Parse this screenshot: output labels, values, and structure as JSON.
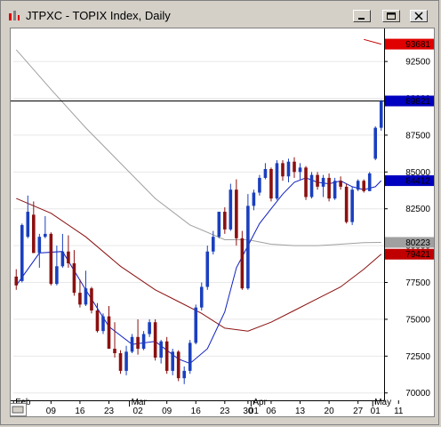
{
  "window": {
    "title": "JTPXC - TOPIX Index, Daily"
  },
  "chart_data": {
    "type": "candlestick",
    "title": "JTPXC - TOPIX Index, Daily",
    "ylim": [
      6950,
      9450
    ],
    "y_ticks": [
      "92500",
      "90000",
      "87500",
      "85000",
      "82500",
      "80000",
      "77500",
      "75000",
      "72500",
      "70000"
    ],
    "x_ticks": [
      {
        "label": "02",
        "idx": 1
      },
      {
        "label": "09",
        "idx": 6
      },
      {
        "label": "16",
        "idx": 11
      },
      {
        "label": "23",
        "idx": 16
      },
      {
        "label": "02",
        "idx": 21
      },
      {
        "label": "09",
        "idx": 26
      },
      {
        "label": "16",
        "idx": 31
      },
      {
        "label": "23",
        "idx": 36
      },
      {
        "label": "30",
        "idx": 40
      },
      {
        "label": "01",
        "idx": 41
      },
      {
        "label": "06",
        "idx": 44
      },
      {
        "label": "13",
        "idx": 49
      },
      {
        "label": "20",
        "idx": 54
      },
      {
        "label": "27",
        "idx": 59
      },
      {
        "label": "01",
        "idx": 62
      },
      {
        "label": "11",
        "idx": 66
      }
    ],
    "months": [
      {
        "label": "Feb",
        "idx": 0
      },
      {
        "label": "Mar",
        "idx": 20
      },
      {
        "label": "Apr",
        "idx": 41
      },
      {
        "label": "May",
        "idx": 62
      }
    ],
    "last_price": 8982,
    "price_tags": [
      {
        "label": "93681",
        "value": 9368,
        "color": "#e00000"
      },
      {
        "label": "89821",
        "value": 8982,
        "color": "#0000c0"
      },
      {
        "label": "84412",
        "value": 8441,
        "color": "#0000c0"
      },
      {
        "label": "80223",
        "value": 8022,
        "color": "#a0a0a0"
      },
      {
        "label": "79421",
        "value": 7942,
        "color": "#c00000"
      }
    ],
    "candles": [
      [
        7790,
        7840,
        7700,
        7730
      ],
      [
        7760,
        8150,
        7750,
        8140
      ],
      [
        8060,
        8340,
        8050,
        8230
      ],
      [
        8210,
        8300,
        7950,
        7950
      ],
      [
        7950,
        8080,
        7850,
        8060
      ],
      [
        8060,
        8200,
        8050,
        8080
      ],
      [
        8080,
        8090,
        7730,
        7740
      ],
      [
        7740,
        8000,
        7730,
        7860
      ],
      [
        7860,
        8080,
        7850,
        7960
      ],
      [
        7960,
        8070,
        7850,
        7880
      ],
      [
        7880,
        7970,
        7660,
        7680
      ],
      [
        7680,
        7770,
        7580,
        7600
      ],
      [
        7600,
        7830,
        7590,
        7710
      ],
      [
        7710,
        7720,
        7540,
        7560
      ],
      [
        7560,
        7610,
        7410,
        7420
      ],
      [
        7420,
        7540,
        7400,
        7520
      ],
      [
        7520,
        7590,
        7300,
        7300
      ],
      [
        7300,
        7480,
        7240,
        7270
      ],
      [
        7270,
        7290,
        7130,
        7150
      ],
      [
        7150,
        7320,
        7120,
        7280
      ],
      [
        7280,
        7400,
        7270,
        7380
      ],
      [
        7380,
        7500,
        7260,
        7300
      ],
      [
        7300,
        7420,
        7290,
        7400
      ],
      [
        7400,
        7500,
        7380,
        7480
      ],
      [
        7480,
        7500,
        7220,
        7240
      ],
      [
        7240,
        7360,
        7200,
        7350
      ],
      [
        7350,
        7380,
        7130,
        7150
      ],
      [
        7150,
        7300,
        7120,
        7280
      ],
      [
        7280,
        7290,
        7080,
        7100
      ],
      [
        7100,
        7180,
        7060,
        7150
      ],
      [
        7150,
        7360,
        7130,
        7340
      ],
      [
        7340,
        7600,
        7330,
        7580
      ],
      [
        7580,
        7750,
        7560,
        7720
      ],
      [
        7720,
        8000,
        7700,
        7960
      ],
      [
        7960,
        8100,
        7940,
        8060
      ],
      [
        8060,
        8230,
        8050,
        8230
      ],
      [
        8230,
        8260,
        8080,
        8110
      ],
      [
        8110,
        8420,
        8100,
        8380
      ],
      [
        8380,
        8450,
        8000,
        8050
      ],
      [
        8050,
        8100,
        7700,
        7710
      ],
      [
        7710,
        8350,
        7700,
        8270
      ],
      [
        8270,
        8380,
        8240,
        8360
      ],
      [
        8360,
        8480,
        8340,
        8460
      ],
      [
        8460,
        8560,
        8450,
        8520
      ],
      [
        8520,
        8530,
        8300,
        8320
      ],
      [
        8320,
        8580,
        8310,
        8560
      ],
      [
        8560,
        8580,
        8440,
        8470
      ],
      [
        8470,
        8590,
        8430,
        8570
      ],
      [
        8570,
        8600,
        8460,
        8500
      ],
      [
        8500,
        8560,
        8450,
        8530
      ],
      [
        8530,
        8540,
        8310,
        8330
      ],
      [
        8330,
        8500,
        8320,
        8480
      ],
      [
        8480,
        8500,
        8380,
        8400
      ],
      [
        8400,
        8480,
        8330,
        8460
      ],
      [
        8460,
        8490,
        8300,
        8320
      ],
      [
        8320,
        8460,
        8310,
        8440
      ],
      [
        8440,
        8470,
        8380,
        8400
      ],
      [
        8400,
        8420,
        8150,
        8160
      ],
      [
        8160,
        8400,
        8140,
        8380
      ],
      [
        8380,
        8450,
        8370,
        8440
      ],
      [
        8440,
        8450,
        8360,
        8370
      ],
      [
        8370,
        8500,
        8370,
        8490
      ],
      [
        8590,
        8810,
        8580,
        8800
      ],
      [
        8800,
        8990,
        8780,
        8982
      ]
    ],
    "sma_short": [
      [
        0,
        7730
      ],
      [
        4,
        7950
      ],
      [
        8,
        7960
      ],
      [
        12,
        7700
      ],
      [
        16,
        7450
      ],
      [
        20,
        7330
      ],
      [
        24,
        7350
      ],
      [
        28,
        7230
      ],
      [
        30,
        7200
      ],
      [
        33,
        7300
      ],
      [
        36,
        7550
      ],
      [
        38,
        7850
      ],
      [
        40,
        8000
      ],
      [
        42,
        8150
      ],
      [
        44,
        8250
      ],
      [
        46,
        8350
      ],
      [
        48,
        8430
      ],
      [
        50,
        8460
      ],
      [
        52,
        8430
      ],
      [
        54,
        8420
      ],
      [
        56,
        8440
      ],
      [
        58,
        8400
      ],
      [
        60,
        8380
      ],
      [
        62,
        8400
      ],
      [
        63,
        8441
      ]
    ],
    "sma_mid": [
      [
        0,
        8320
      ],
      [
        6,
        8220
      ],
      [
        12,
        8060
      ],
      [
        18,
        7860
      ],
      [
        24,
        7700
      ],
      [
        28,
        7620
      ],
      [
        32,
        7540
      ],
      [
        36,
        7440
      ],
      [
        40,
        7420
      ],
      [
        44,
        7480
      ],
      [
        48,
        7560
      ],
      [
        52,
        7640
      ],
      [
        56,
        7720
      ],
      [
        60,
        7840
      ],
      [
        63,
        7942
      ]
    ],
    "sma_long": [
      [
        0,
        9330
      ],
      [
        6,
        9060
      ],
      [
        12,
        8800
      ],
      [
        18,
        8560
      ],
      [
        24,
        8320
      ],
      [
        30,
        8140
      ],
      [
        36,
        8040
      ],
      [
        40,
        8040
      ],
      [
        44,
        8010
      ],
      [
        48,
        8000
      ],
      [
        52,
        8000
      ],
      [
        56,
        8010
      ],
      [
        60,
        8020
      ],
      [
        63,
        8022
      ]
    ],
    "sma_red_top": [
      [
        60,
        9400
      ],
      [
        63,
        9368
      ]
    ]
  }
}
